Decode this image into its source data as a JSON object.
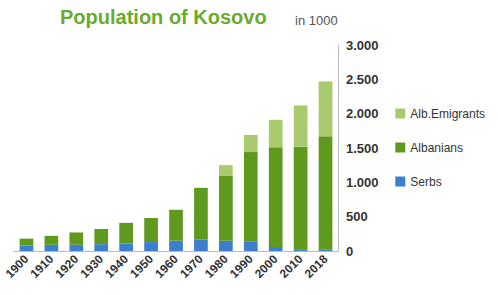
{
  "chart_data": {
    "type": "bar",
    "title": "Population of Kosovo",
    "subtitle": "in 1000",
    "categories": [
      "1900",
      "1910",
      "1920",
      "1930",
      "1940",
      "1950",
      "1960",
      "1970",
      "1980",
      "1990",
      "2000",
      "2010",
      "2018"
    ],
    "series": [
      {
        "name": "Serbs",
        "color": "#3d7fcf",
        "values": [
          80,
          90,
          90,
          100,
          110,
          130,
          150,
          170,
          150,
          140,
          60,
          20,
          20
        ]
      },
      {
        "name": "Albanians",
        "color": "#5f9a1f",
        "values": [
          100,
          130,
          180,
          220,
          300,
          350,
          450,
          750,
          950,
          1300,
          1450,
          1500,
          1650
        ]
      },
      {
        "name": "Alb.Emigrants",
        "color": "#a9cb6e",
        "values": [
          null,
          null,
          null,
          null,
          null,
          null,
          null,
          null,
          150,
          250,
          400,
          600,
          800
        ]
      }
    ],
    "stacked": true,
    "ylim": [
      0,
      3000
    ],
    "yticks": [
      0,
      500,
      {
        "value": 1000,
        "label": "1.000"
      },
      {
        "value": 1500,
        "label": "1.500"
      },
      {
        "value": 2000,
        "label": "2.000"
      },
      {
        "value": 2500,
        "label": "2.500"
      },
      {
        "value": 3000,
        "label": "3.000"
      }
    ],
    "grid": false,
    "legend": "right"
  }
}
